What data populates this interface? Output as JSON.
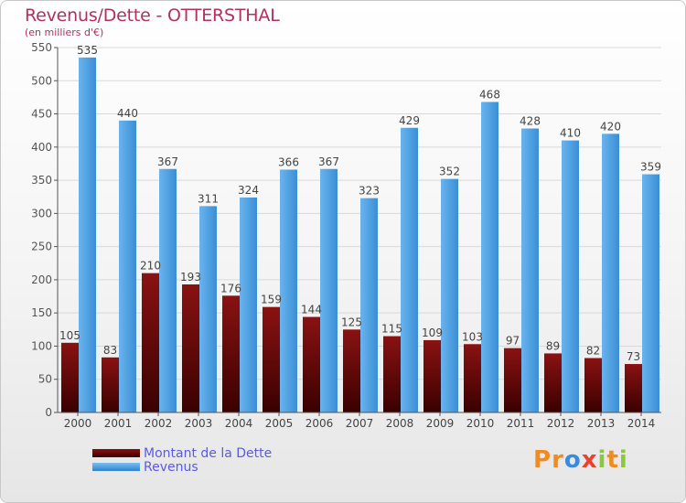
{
  "header": {
    "title": "Revenus/Dette - OTTERSTHAL",
    "subtitle": "(en milliers d'€)"
  },
  "legend": {
    "items": [
      {
        "label": "Montant de la Dette"
      },
      {
        "label": "Revenus"
      }
    ]
  },
  "logo": {
    "text": "Proxiti",
    "letters": [
      "P",
      "r",
      "o",
      "x",
      "i",
      "t",
      "i"
    ],
    "colors": [
      "#f28a1e",
      "#f28a1e",
      "#3a8be0",
      "#e8432e",
      "#8dc63f",
      "#f28a1e",
      "#8dc63f"
    ]
  },
  "chart_data": {
    "type": "bar",
    "categories": [
      "2000",
      "2001",
      "2002",
      "2003",
      "2004",
      "2005",
      "2006",
      "2007",
      "2008",
      "2009",
      "2010",
      "2011",
      "2012",
      "2013",
      "2014"
    ],
    "series": [
      {
        "name": "Montant de la Dette",
        "color": "#6a0a0a",
        "values": [
          105,
          83,
          210,
          193,
          176,
          159,
          144,
          125,
          115,
          109,
          103,
          97,
          89,
          82,
          73
        ]
      },
      {
        "name": "Revenus",
        "color": "#4a9fe0",
        "values": [
          535,
          440,
          367,
          311,
          324,
          366,
          367,
          323,
          429,
          352,
          468,
          428,
          410,
          420,
          359
        ]
      }
    ],
    "ylim": [
      0,
      550
    ],
    "yticks": [
      0,
      50,
      100,
      150,
      200,
      250,
      300,
      350,
      400,
      450,
      500,
      550
    ],
    "grid": true,
    "legend_position": "bottom-left"
  }
}
